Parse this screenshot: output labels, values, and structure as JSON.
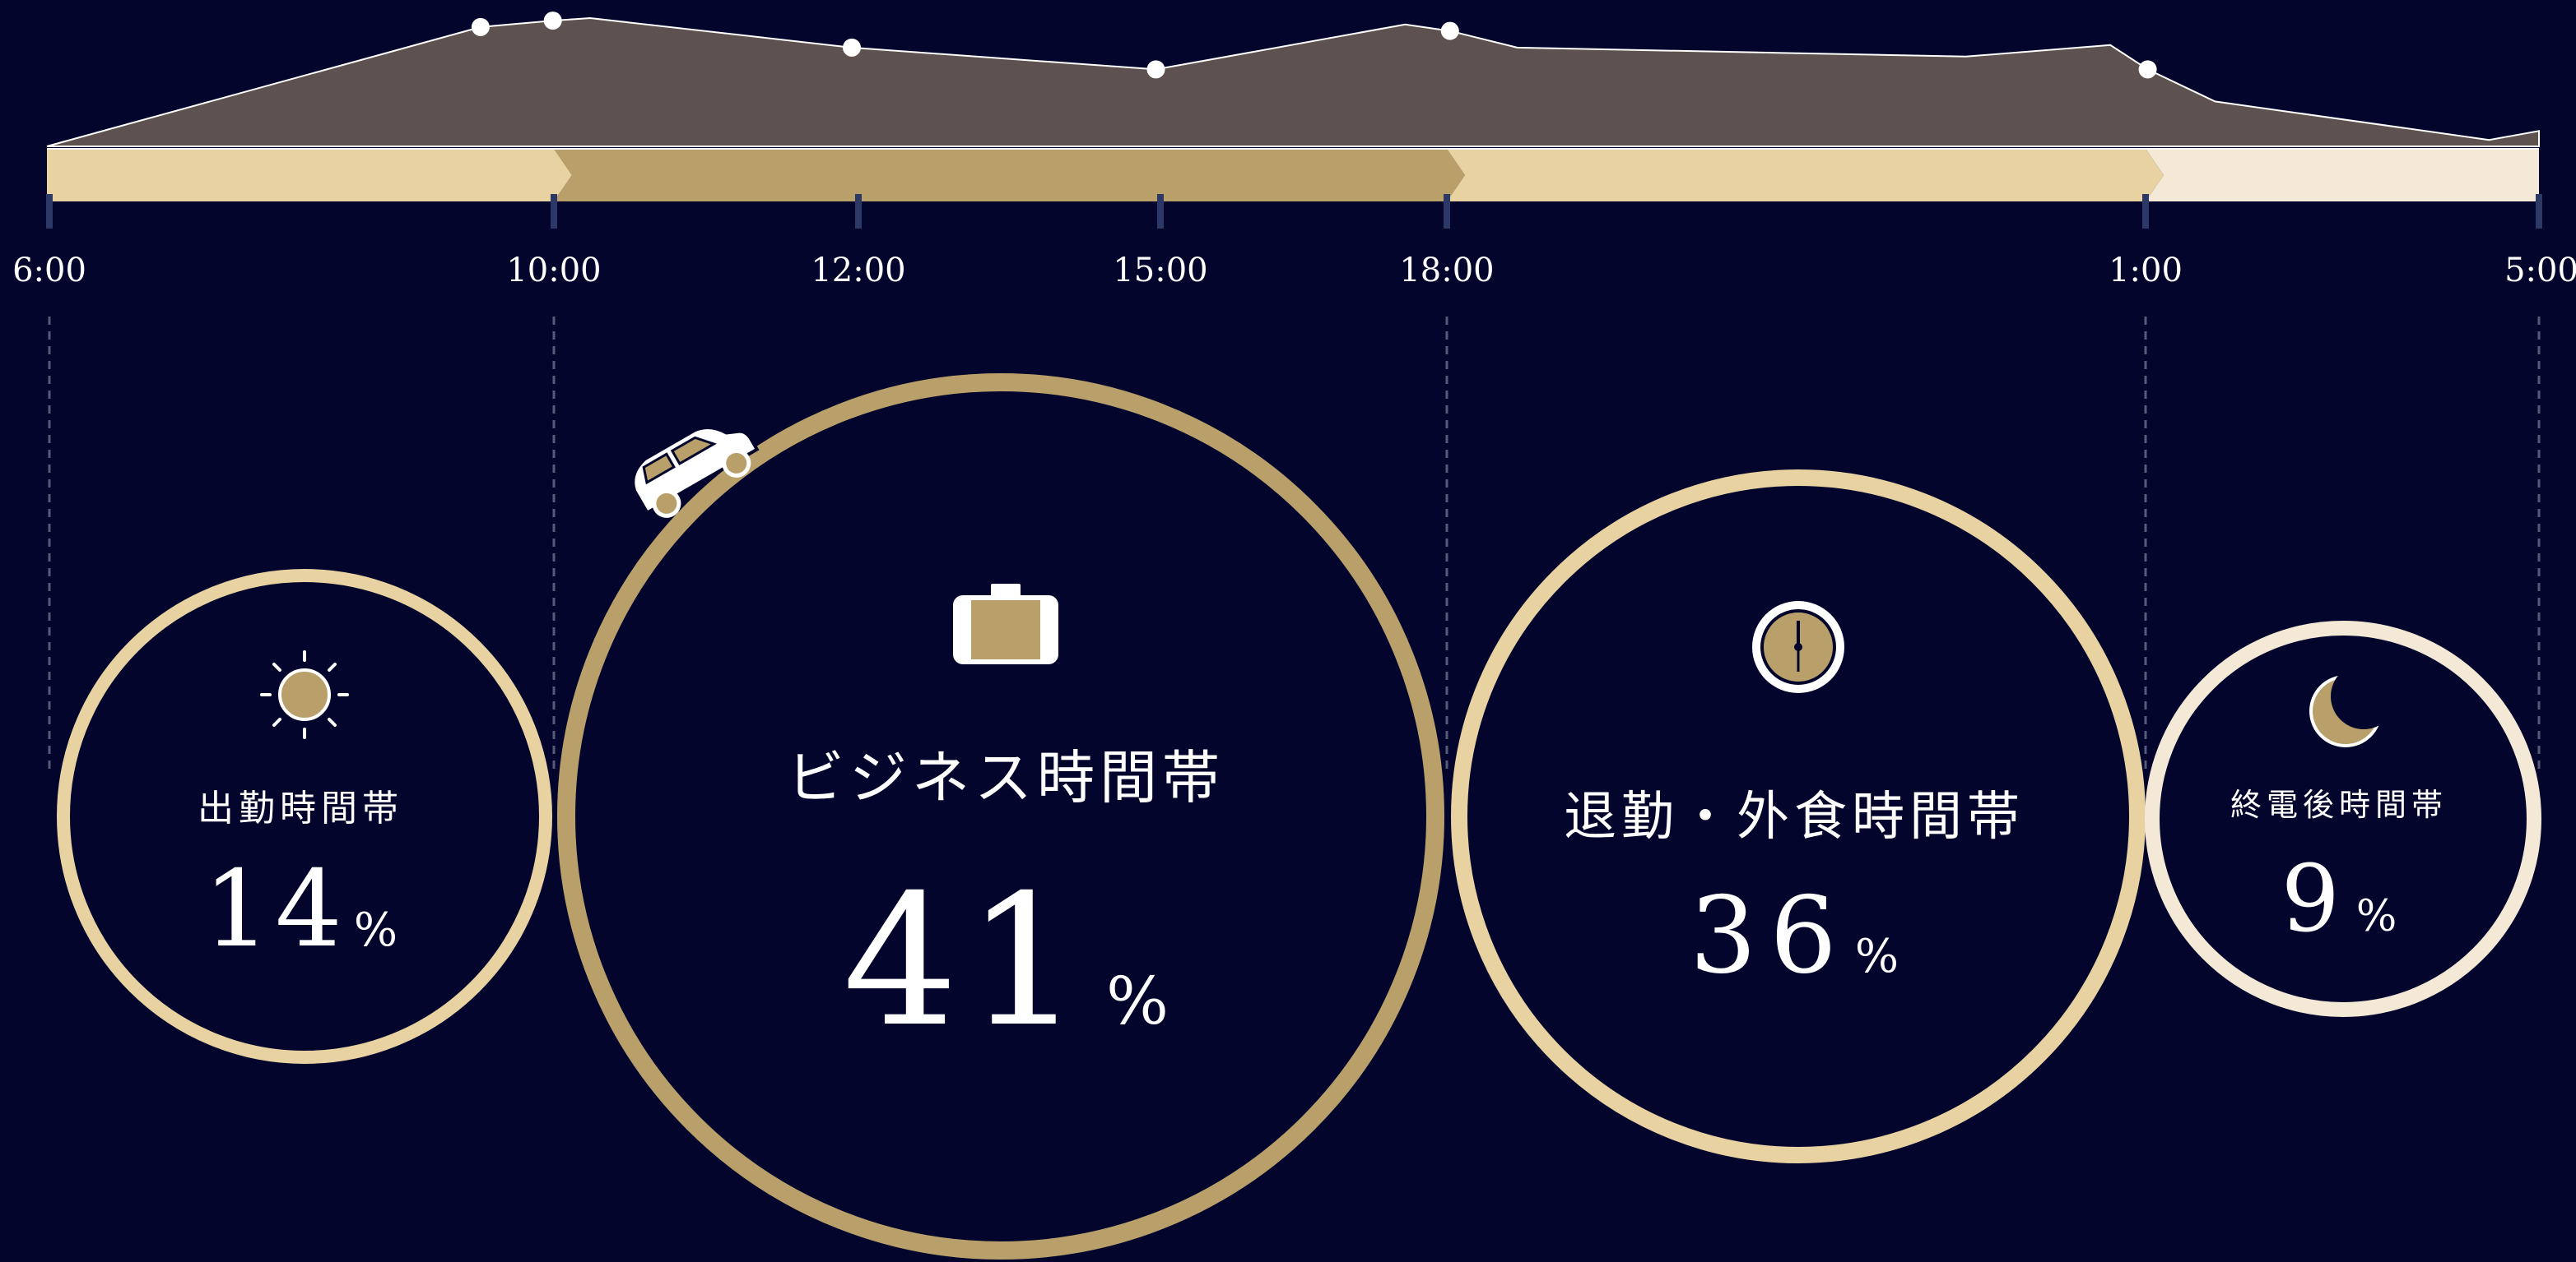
{
  "colors": {
    "background": "#03052c",
    "area_fill": "#5e5250",
    "area_stroke": "#ffffff",
    "light_gold": "#e8d2a1",
    "dark_gold": "#b9a06b",
    "pale_gold": "#f3e9d6",
    "tick": "#2c3866",
    "dashed_line": "#555a78",
    "text": "#ffffff"
  },
  "chart_data": [
    {
      "type": "area",
      "x_labels": [
        "6:00",
        "10:00",
        "12:00",
        "15:00",
        "18:00",
        "1:00",
        "5:00"
      ],
      "profile": [
        {
          "x": 0.0,
          "y": 0.0
        },
        {
          "x": 0.174,
          "y": 0.93
        },
        {
          "x": 0.203,
          "y": 0.98
        },
        {
          "x": 0.218,
          "y": 1.0
        },
        {
          "x": 0.323,
          "y": 0.77
        },
        {
          "x": 0.445,
          "y": 0.6
        },
        {
          "x": 0.545,
          "y": 0.95
        },
        {
          "x": 0.563,
          "y": 0.9
        },
        {
          "x": 0.59,
          "y": 0.77
        },
        {
          "x": 0.77,
          "y": 0.7
        },
        {
          "x": 0.828,
          "y": 0.79
        },
        {
          "x": 0.843,
          "y": 0.6
        },
        {
          "x": 0.87,
          "y": 0.35
        },
        {
          "x": 0.98,
          "y": 0.05
        },
        {
          "x": 1.0,
          "y": 0.12
        }
      ],
      "markers": [
        0.174,
        0.203,
        0.323,
        0.445,
        0.563,
        0.843
      ],
      "segments": [
        {
          "from": "6:00",
          "to": "10:00",
          "color": "#e8d2a1"
        },
        {
          "from": "10:00",
          "to": "18:00",
          "color": "#b9a06b"
        },
        {
          "from": "18:00",
          "to": "1:00",
          "color": "#e8d2a1"
        },
        {
          "from": "1:00",
          "to": "5:00",
          "color": "#f3e9d6"
        }
      ]
    },
    {
      "type": "bubble",
      "categories": [
        "出勤時間帯",
        "ビジネス時間帯",
        "退勤・外食時間帯",
        "終電後時間帯"
      ],
      "values": [
        14,
        41,
        36,
        9
      ],
      "unit": "%",
      "icons": [
        "sun-icon",
        "briefcase-icon",
        "clock-icon",
        "moon-icon"
      ],
      "ring_colors": [
        "#e8d2a1",
        "#b9a06b",
        "#e8d2a1",
        "#f3e9d6"
      ]
    }
  ],
  "bubbles": [
    {
      "label": "出勤時間帯",
      "value": "14",
      "unit": "%"
    },
    {
      "label": "ビジネス時間帯",
      "value": "41",
      "unit": "%"
    },
    {
      "label": "退勤・外食時間帯",
      "value": "36",
      "unit": "%"
    },
    {
      "label": "終電後時間帯",
      "value": "9",
      "unit": "%"
    }
  ]
}
